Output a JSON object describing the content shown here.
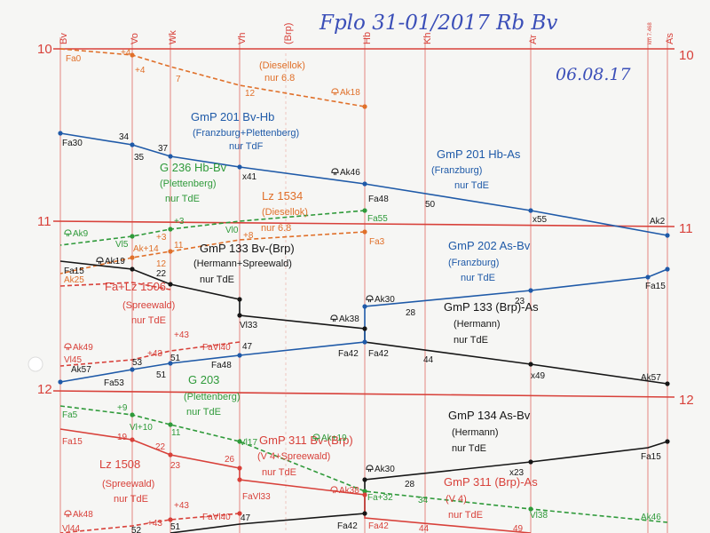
{
  "header": {
    "title": "Fplo 31-01/2017 Rb Bv",
    "date": "06.08.17"
  },
  "stations": [
    {
      "code": "Bv"
    },
    {
      "code": "Vo"
    },
    {
      "code": "Wk"
    },
    {
      "code": "Vh"
    },
    {
      "code": "(Brp)"
    },
    {
      "code": "Hb"
    },
    {
      "code": "Kh"
    },
    {
      "code": "Ar"
    },
    {
      "code": "km 7.468"
    },
    {
      "code": "As"
    }
  ],
  "hours": [
    "10",
    "11",
    "12"
  ],
  "colors": {
    "red": "#d8413a",
    "blue": "#1f5aa8",
    "green": "#2f9a3a",
    "orange": "#e0702a",
    "black": "#161616",
    "pen": "#3b4fb8"
  },
  "trains": [
    {
      "key": "diesellok_top",
      "lines": [
        "(Diesellok)",
        "nur 6.8"
      ],
      "color": "orange",
      "marks": [
        "Fa0",
        "+4",
        "+4",
        "7",
        "12",
        "Ak18"
      ]
    },
    {
      "key": "gmp201",
      "lines": [
        "GmP 201 Bv-Hb",
        "(Franzburg+Plettenberg)",
        "nur TdF"
      ],
      "color": "blue",
      "marks": [
        "Fa30",
        "34",
        "35",
        "37",
        "x41",
        "Ak46"
      ]
    },
    {
      "key": "gmp201b",
      "lines": [
        "GmP 201 Hb-As",
        "(Franzburg)",
        "nur TdE"
      ],
      "color": "blue",
      "marks": [
        "Fa48",
        "50",
        "x55",
        "Ak2"
      ]
    },
    {
      "key": "g236",
      "lines": [
        "G 236 Hb-Bv",
        "(Plettenberg)",
        "nur TdE"
      ],
      "color": "green",
      "marks": [
        "Fa55",
        "+3",
        "Vl0",
        "Vl5",
        "Ak9"
      ]
    },
    {
      "key": "lz1534",
      "lines": [
        "Lz 1534",
        "(Diesellok)",
        "nur 6.8"
      ],
      "color": "orange",
      "marks": [
        "Fa3",
        "+8",
        "11",
        "Ak+14",
        "+3",
        "12"
      ]
    },
    {
      "key": "gmp133",
      "lines": [
        "GmP 133 Bv-(Brp)",
        "(Hermann+Spreewald)",
        "nur TdE"
      ],
      "color": "black",
      "marks": [
        "Ak19",
        "Fa15",
        "22",
        "Vl33",
        "Ak38"
      ]
    },
    {
      "key": "gmp202",
      "lines": [
        "GmP 202 As-Bv",
        "(Franzburg)",
        "nur TdE"
      ],
      "color": "blue",
      "marks": [
        "Ak30",
        "28",
        "23",
        "Fa15"
      ]
    },
    {
      "key": "lz1506",
      "lines": [
        "Fa+Lz 1506",
        "(Spreewald)",
        "nur TdE"
      ],
      "color": "red",
      "marks": [
        "Ak25",
        "Ak49",
        "Vl45",
        "+43",
        "FaVl40",
        "+43"
      ]
    },
    {
      "key": "gmp133b",
      "lines": [
        "GmP 133 (Brp)-As",
        "(Hermann)",
        "nur TdE"
      ],
      "color": "black",
      "marks": [
        "Fa42",
        "44",
        "x49",
        "Ak57"
      ]
    },
    {
      "key": "gmp202b",
      "lines": [],
      "color": "blue",
      "marks": [
        "Ak57",
        "53",
        "Fa53",
        "51",
        "51",
        "Fa48",
        "47",
        "Fa42"
      ]
    },
    {
      "key": "g203",
      "lines": [
        "G 203",
        "(Plettenberg)",
        "nur TdE"
      ],
      "color": "green",
      "marks": [
        "Fa5",
        "+9",
        "Vl+10",
        "11",
        "Vl17",
        "Ak+19",
        "Fa+32",
        "34",
        "Vl38",
        "Ak46"
      ]
    },
    {
      "key": "gmp134",
      "lines": [
        "GmP 134 As-Bv",
        "(Hermann)",
        "nur TdE"
      ],
      "color": "black",
      "marks": [
        "Fa15",
        "x23",
        "28",
        "Ak30"
      ]
    },
    {
      "key": "gmp311",
      "lines": [
        "GmP 311 Bv-(Brp)",
        "(V 4+Spreewald)",
        "nur TdE"
      ],
      "color": "red",
      "marks": [
        "Fa15",
        "19",
        "22",
        "23",
        "26",
        "FaVl33",
        "Ak38"
      ]
    },
    {
      "key": "gmp311b",
      "lines": [
        "GmP 311 (Brp)-As",
        "(V 4)",
        "nur TdE"
      ],
      "color": "red",
      "marks": [
        "Fa42",
        "44",
        "49"
      ]
    },
    {
      "key": "lz1508",
      "lines": [
        "Lz 1508",
        "(Spreewald)",
        "nur TdE"
      ],
      "color": "red",
      "marks": [
        "Ak48",
        "Vl44",
        "+43",
        "52",
        "51",
        "+43",
        "FaVl40",
        "47",
        "Fa42"
      ]
    }
  ]
}
